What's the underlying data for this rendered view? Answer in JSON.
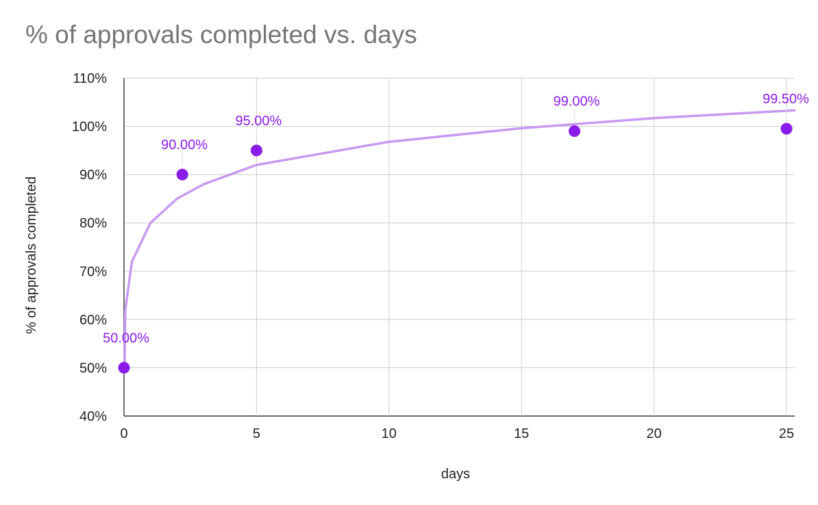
{
  "chart_data": {
    "type": "scatter",
    "title": "% of approvals completed vs. days",
    "xlabel": "days",
    "ylabel": "% of approvals completed",
    "xlim": [
      0,
      25
    ],
    "ylim": [
      40,
      110
    ],
    "x_ticks": [
      0,
      5,
      10,
      15,
      20,
      25
    ],
    "y_ticks": [
      "40%",
      "50%",
      "60%",
      "70%",
      "80%",
      "90%",
      "100%",
      "110%"
    ],
    "grid": true,
    "legend": "none",
    "series": [
      {
        "points": [
          {
            "x": 0,
            "y": 50.0,
            "label": "50.00%"
          },
          {
            "x": 2.2,
            "y": 90.0,
            "label": "90.00%"
          },
          {
            "x": 5,
            "y": 95.0,
            "label": "95.00%"
          },
          {
            "x": 17,
            "y": 99.0,
            "label": "99.00%"
          },
          {
            "x": 25,
            "y": 99.5,
            "label": "99.50%"
          }
        ],
        "color": "#8a1be8"
      }
    ],
    "trendline": {
      "type": "logarithmic",
      "color": "#c79af2",
      "points": [
        {
          "x": 0.02,
          "y": 50
        },
        {
          "x": 0.05,
          "y": 62
        },
        {
          "x": 0.3,
          "y": 72
        },
        {
          "x": 1,
          "y": 80
        },
        {
          "x": 2,
          "y": 85
        },
        {
          "x": 3,
          "y": 88
        },
        {
          "x": 5,
          "y": 92
        },
        {
          "x": 10,
          "y": 96.8
        },
        {
          "x": 15,
          "y": 99.6
        },
        {
          "x": 20,
          "y": 101.7
        },
        {
          "x": 25.3,
          "y": 103.3
        }
      ]
    }
  }
}
